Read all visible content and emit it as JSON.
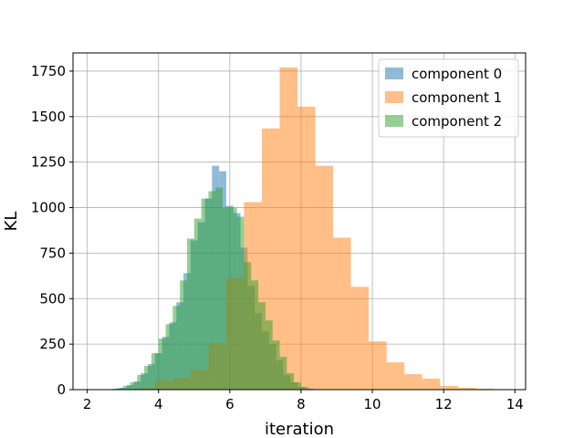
{
  "chart_data": {
    "type": "bar",
    "title": "",
    "xlabel": "iteration",
    "ylabel": "KL",
    "xlim": [
      1.6,
      14.3
    ],
    "ylim": [
      0,
      1850
    ],
    "xticks": [
      2,
      4,
      6,
      8,
      10,
      12,
      14
    ],
    "yticks": [
      0,
      250,
      500,
      750,
      1000,
      1250,
      1500,
      1750
    ],
    "grid": true,
    "legend_position": "top-right",
    "series": [
      {
        "name": "component 0",
        "color": "#1f77b4",
        "bin_edges": [
          2.7,
          2.9,
          3.1,
          3.3,
          3.5,
          3.7,
          3.9,
          4.1,
          4.3,
          4.5,
          4.7,
          4.9,
          5.1,
          5.3,
          5.5,
          5.7,
          5.9,
          6.1,
          6.3,
          6.5,
          6.7,
          6.9,
          7.1,
          7.3,
          7.5,
          7.7,
          7.9,
          8.1,
          8.3
        ],
        "counts": [
          5,
          10,
          25,
          45,
          90,
          140,
          200,
          290,
          370,
          480,
          640,
          820,
          920,
          1050,
          1230,
          1200,
          1010,
          970,
          780,
          570,
          420,
          320,
          250,
          160,
          80,
          40,
          15,
          5
        ]
      },
      {
        "name": "component 1",
        "color": "#ff7f0e",
        "bin_edges": [
          3.4,
          3.9,
          4.4,
          4.9,
          5.4,
          5.9,
          6.4,
          6.9,
          7.4,
          7.9,
          8.4,
          8.9,
          9.4,
          9.9,
          10.4,
          10.9,
          11.4,
          11.9,
          12.4,
          12.9,
          13.4
        ],
        "counts": [
          10,
          50,
          65,
          110,
          255,
          615,
          1030,
          1435,
          1770,
          1555,
          1230,
          835,
          565,
          265,
          150,
          85,
          60,
          20,
          10,
          5
        ]
      },
      {
        "name": "component 2",
        "color": "#2ca02c",
        "bin_edges": [
          2.6,
          2.8,
          3.0,
          3.2,
          3.4,
          3.6,
          3.8,
          4.0,
          4.2,
          4.4,
          4.6,
          4.8,
          5.0,
          5.2,
          5.4,
          5.6,
          5.8,
          6.0,
          6.2,
          6.4,
          6.6,
          6.8,
          7.0,
          7.2,
          7.4,
          7.6,
          7.8,
          8.0,
          8.2,
          8.4
        ],
        "counts": [
          2,
          8,
          20,
          40,
          80,
          130,
          200,
          280,
          360,
          460,
          600,
          830,
          940,
          1050,
          1090,
          1110,
          1000,
          1000,
          950,
          700,
          600,
          480,
          380,
          270,
          180,
          90,
          40,
          15,
          5
        ]
      }
    ]
  }
}
